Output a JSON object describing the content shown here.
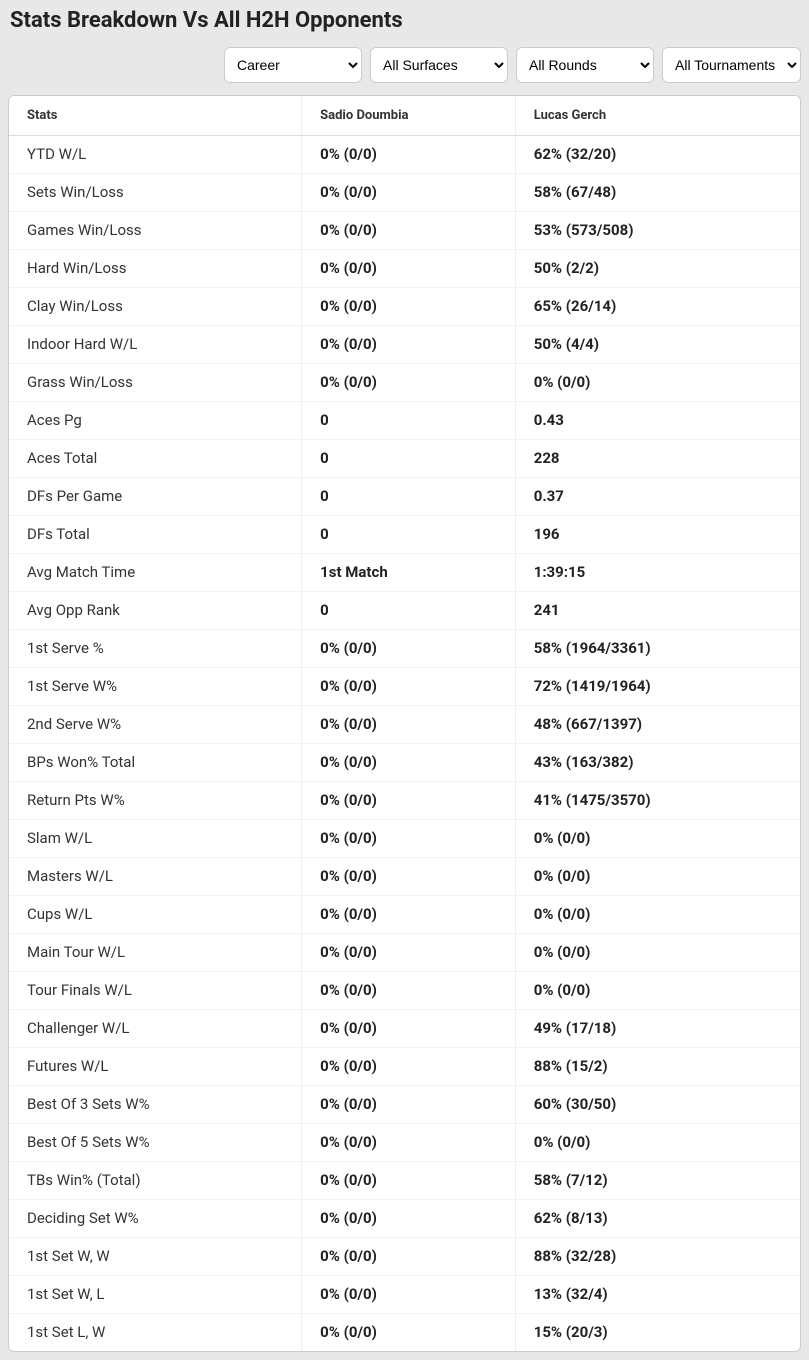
{
  "title": "Stats Breakdown Vs All H2H Opponents",
  "filters": {
    "period": {
      "selected": "Career",
      "options": [
        "Career"
      ]
    },
    "surface": {
      "selected": "All Surfaces",
      "options": [
        "All Surfaces"
      ]
    },
    "round": {
      "selected": "All Rounds",
      "options": [
        "All Rounds"
      ]
    },
    "tournament": {
      "selected": "All Tournaments",
      "options": [
        "All Tournaments"
      ]
    }
  },
  "table": {
    "columns": {
      "stats": "Stats",
      "player1": "Sadio Doumbia",
      "player2": "Lucas Gerch"
    },
    "rows": [
      {
        "stat": "YTD W/L",
        "p1": "0% (0/0)",
        "p2": "62% (32/20)"
      },
      {
        "stat": "Sets Win/Loss",
        "p1": "0% (0/0)",
        "p2": "58% (67/48)"
      },
      {
        "stat": "Games Win/Loss",
        "p1": "0% (0/0)",
        "p2": "53% (573/508)"
      },
      {
        "stat": "Hard Win/Loss",
        "p1": "0% (0/0)",
        "p2": "50% (2/2)"
      },
      {
        "stat": "Clay Win/Loss",
        "p1": "0% (0/0)",
        "p2": "65% (26/14)"
      },
      {
        "stat": "Indoor Hard W/L",
        "p1": "0% (0/0)",
        "p2": "50% (4/4)"
      },
      {
        "stat": "Grass Win/Loss",
        "p1": "0% (0/0)",
        "p2": "0% (0/0)"
      },
      {
        "stat": "Aces Pg",
        "p1": "0",
        "p2": "0.43"
      },
      {
        "stat": "Aces Total",
        "p1": "0",
        "p2": "228"
      },
      {
        "stat": "DFs Per Game",
        "p1": "0",
        "p2": "0.37"
      },
      {
        "stat": "DFs Total",
        "p1": "0",
        "p2": "196"
      },
      {
        "stat": "Avg Match Time",
        "p1": "1st Match",
        "p2": "1:39:15"
      },
      {
        "stat": "Avg Opp Rank",
        "p1": "0",
        "p2": "241"
      },
      {
        "stat": "1st Serve %",
        "p1": "0% (0/0)",
        "p2": "58% (1964/3361)"
      },
      {
        "stat": "1st Serve W%",
        "p1": "0% (0/0)",
        "p2": "72% (1419/1964)"
      },
      {
        "stat": "2nd Serve W%",
        "p1": "0% (0/0)",
        "p2": "48% (667/1397)"
      },
      {
        "stat": "BPs Won% Total",
        "p1": "0% (0/0)",
        "p2": "43% (163/382)"
      },
      {
        "stat": "Return Pts W%",
        "p1": "0% (0/0)",
        "p2": "41% (1475/3570)"
      },
      {
        "stat": "Slam W/L",
        "p1": "0% (0/0)",
        "p2": "0% (0/0)"
      },
      {
        "stat": "Masters W/L",
        "p1": "0% (0/0)",
        "p2": "0% (0/0)"
      },
      {
        "stat": "Cups W/L",
        "p1": "0% (0/0)",
        "p2": "0% (0/0)"
      },
      {
        "stat": "Main Tour W/L",
        "p1": "0% (0/0)",
        "p2": "0% (0/0)"
      },
      {
        "stat": "Tour Finals W/L",
        "p1": "0% (0/0)",
        "p2": "0% (0/0)"
      },
      {
        "stat": "Challenger W/L",
        "p1": "0% (0/0)",
        "p2": "49% (17/18)"
      },
      {
        "stat": "Futures W/L",
        "p1": "0% (0/0)",
        "p2": "88% (15/2)"
      },
      {
        "stat": "Best Of 3 Sets W%",
        "p1": "0% (0/0)",
        "p2": "60% (30/50)"
      },
      {
        "stat": "Best Of 5 Sets W%",
        "p1": "0% (0/0)",
        "p2": "0% (0/0)"
      },
      {
        "stat": "TBs Win% (Total)",
        "p1": "0% (0/0)",
        "p2": "58% (7/12)"
      },
      {
        "stat": "Deciding Set W%",
        "p1": "0% (0/0)",
        "p2": "62% (8/13)"
      },
      {
        "stat": "1st Set W, W",
        "p1": "0% (0/0)",
        "p2": "88% (32/28)"
      },
      {
        "stat": "1st Set W, L",
        "p1": "0% (0/0)",
        "p2": "13% (32/4)"
      },
      {
        "stat": "1st Set L, W",
        "p1": "0% (0/0)",
        "p2": "15% (20/3)"
      }
    ]
  },
  "style": {
    "background": "#e8e8e8",
    "table_bg": "#ffffff",
    "border_color": "#cccccc",
    "header_text": "#333333",
    "body_text": "#333333",
    "bold_text": "#222222",
    "row_divider": "#f3f3f3",
    "col_divider": "#eeeeee",
    "title_fontsize": 22,
    "header_fontsize": 13,
    "cell_fontsize": 15
  }
}
